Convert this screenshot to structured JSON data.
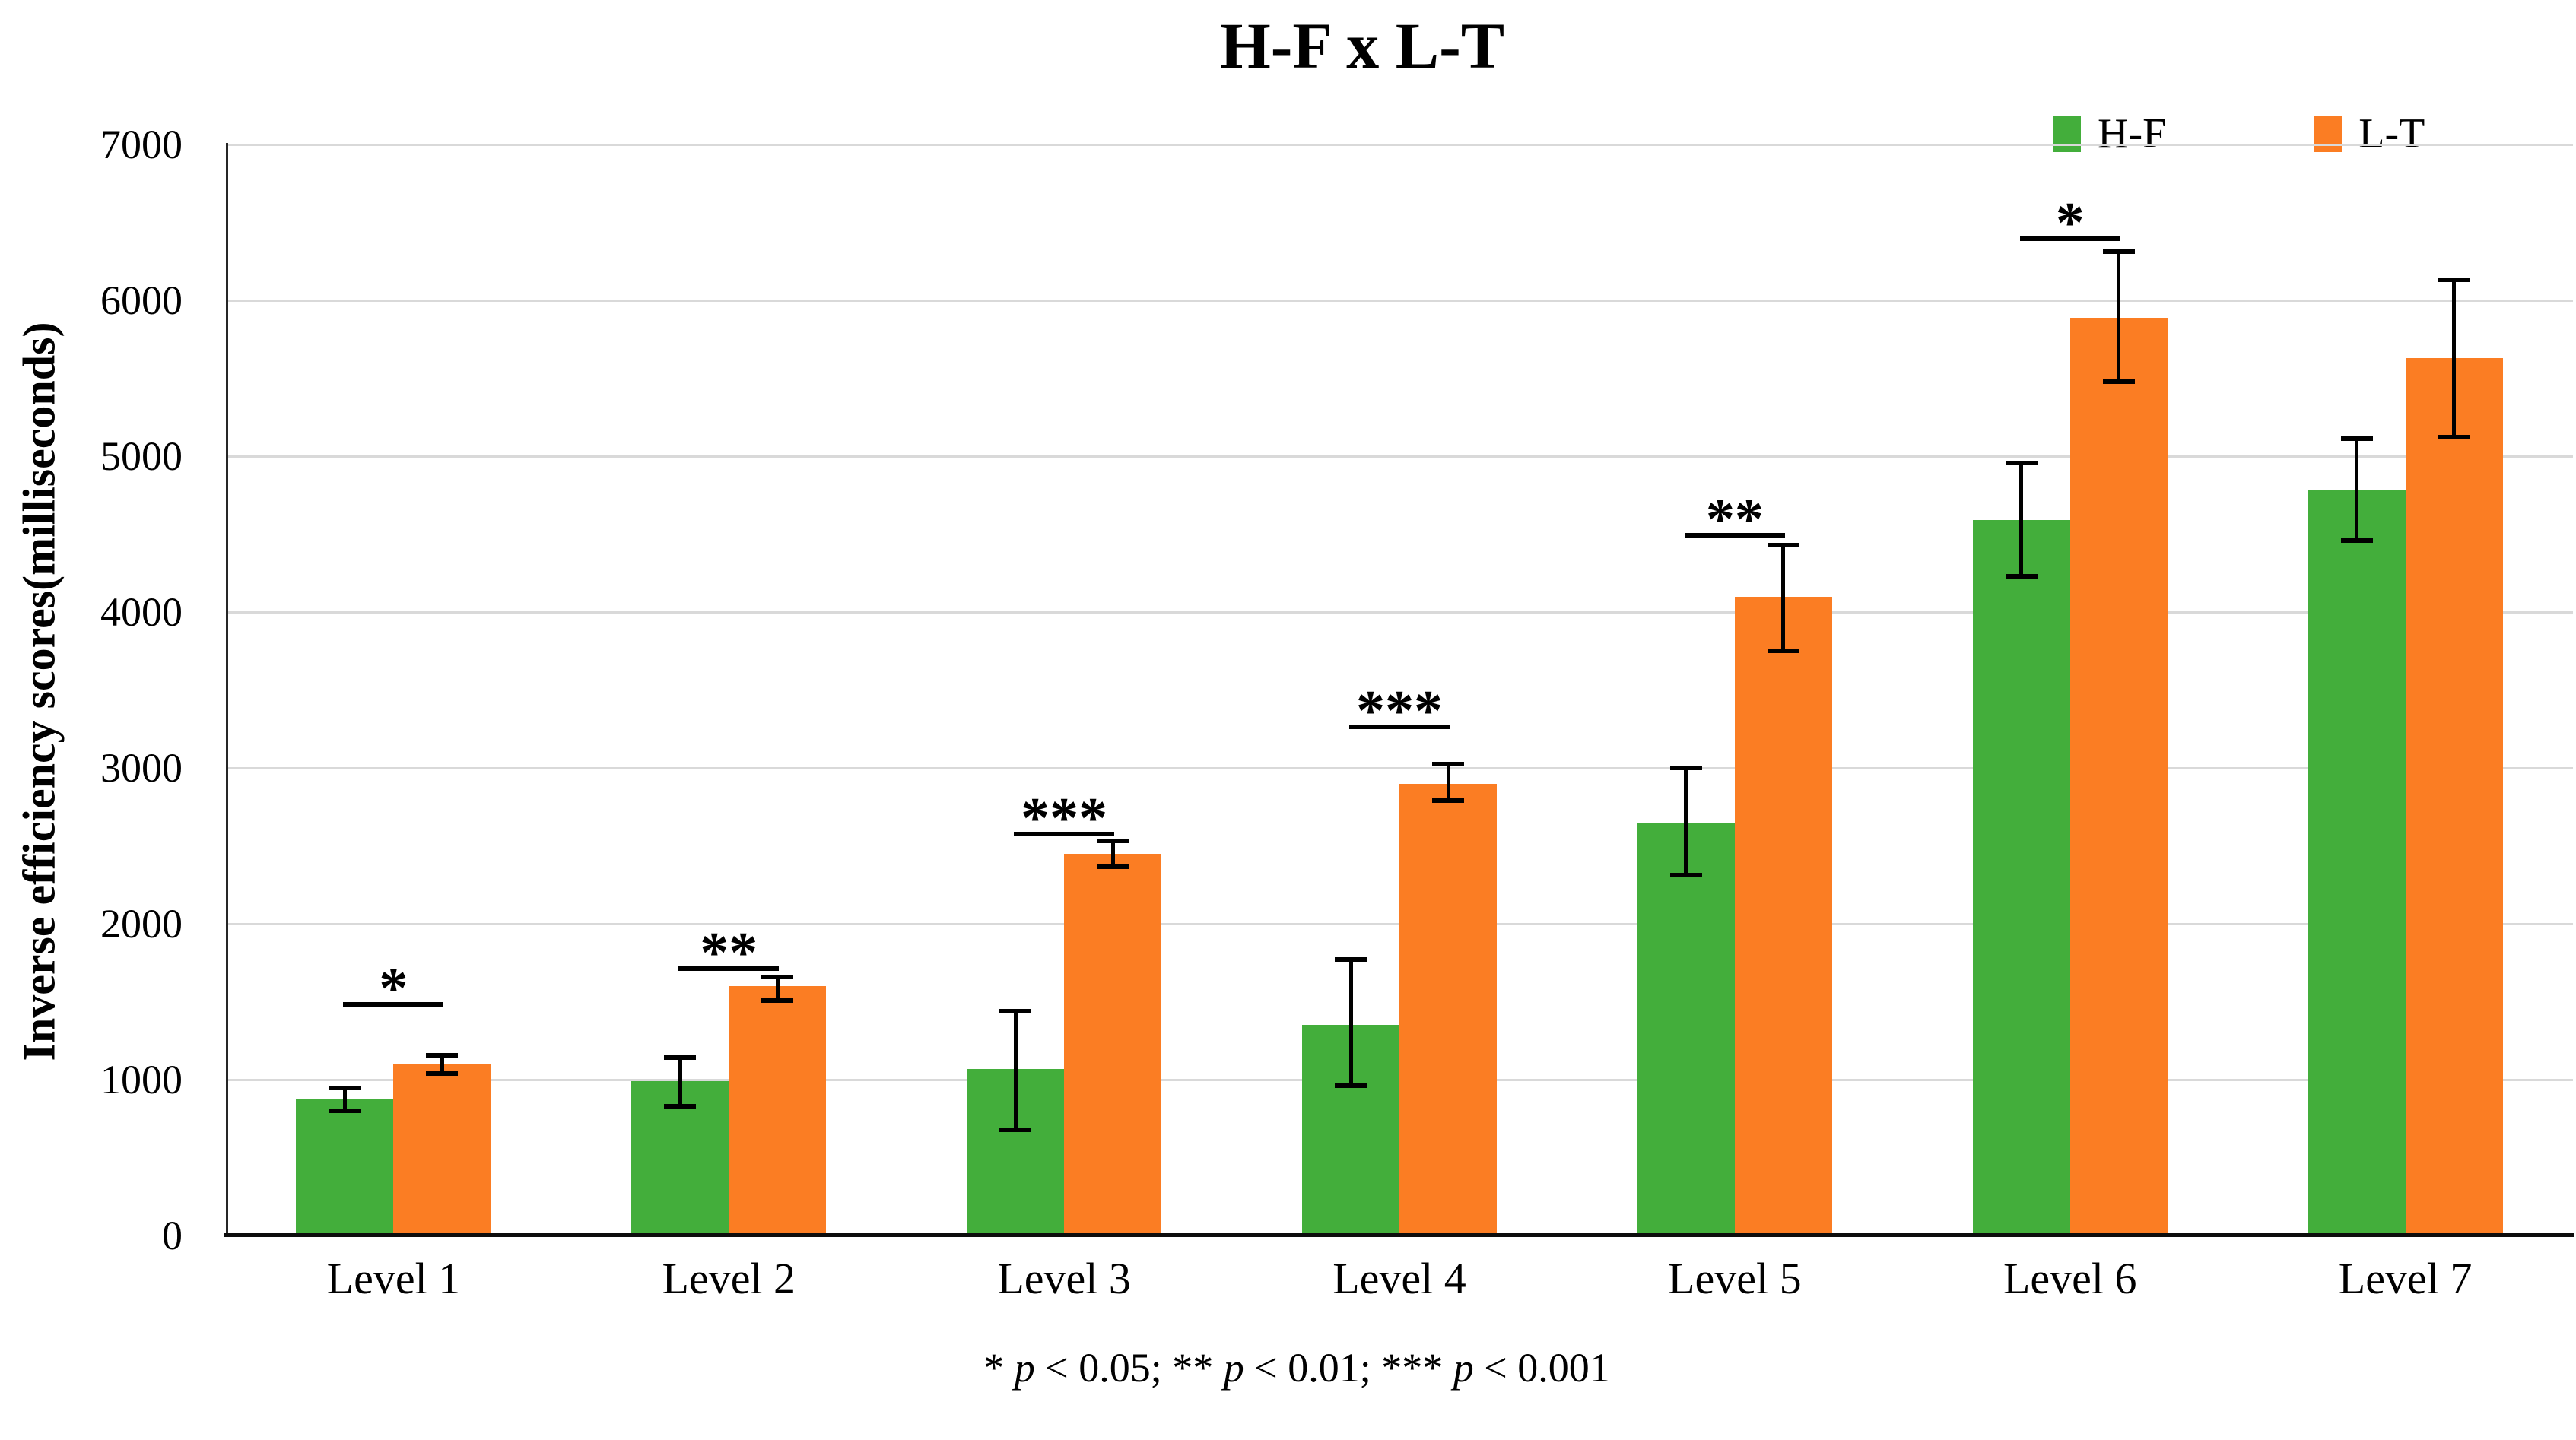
{
  "title": "H-F x L-T",
  "legend": [
    {
      "label": "H-F",
      "color": "#43AE3B"
    },
    {
      "label": "L-T",
      "color": "#FB7D23"
    }
  ],
  "y_axis": {
    "label": "Inverse efficiency scores(milliseconds)",
    "ticks": [
      0,
      1000,
      2000,
      3000,
      4000,
      5000,
      6000,
      7000
    ],
    "max": 7000
  },
  "footnote": {
    "s1": "* ",
    "r1": " < 0.05; ",
    "s2": "** ",
    "r2": " < 0.01; ",
    "s3": "*** ",
    "r3": " < 0.001",
    "p": "p"
  },
  "chart_data": {
    "type": "bar",
    "title": "H-F x L-T",
    "ylabel": "Inverse efficiency scores(milliseconds)",
    "xlabel": "",
    "ylim": [
      0,
      7000
    ],
    "grid": true,
    "legend_position": "top-right",
    "categories": [
      "Level 1",
      "Level 2",
      "Level 3",
      "Level 4",
      "Level 5",
      "Level 6",
      "Level 7"
    ],
    "series": [
      {
        "name": "H-F",
        "color": "#43AE3B",
        "values": [
          880,
          990,
          1070,
          1350,
          2650,
          4590,
          4780
        ],
        "error_plus": [
          65,
          150,
          370,
          420,
          350,
          365,
          330
        ],
        "error_minus": [
          80,
          160,
          390,
          390,
          340,
          360,
          320
        ]
      },
      {
        "name": "L-T",
        "color": "#FB7D23",
        "values": [
          1100,
          1600,
          2450,
          2900,
          4100,
          5890,
          5630
        ],
        "error_plus": [
          55,
          60,
          80,
          125,
          330,
          420,
          500
        ],
        "error_minus": [
          60,
          95,
          85,
          110,
          350,
          410,
          510
        ]
      }
    ],
    "significance": [
      {
        "category": "Level 1",
        "stars": "*",
        "y": 1470
      },
      {
        "category": "Level 2",
        "stars": "**",
        "y": 1700
      },
      {
        "category": "Level 3",
        "stars": "***",
        "y": 2560
      },
      {
        "category": "Level 4",
        "stars": "***",
        "y": 3250
      },
      {
        "category": "Level 5",
        "stars": "**",
        "y": 4480
      },
      {
        "category": "Level 6",
        "stars": "*",
        "y": 6380
      }
    ]
  }
}
